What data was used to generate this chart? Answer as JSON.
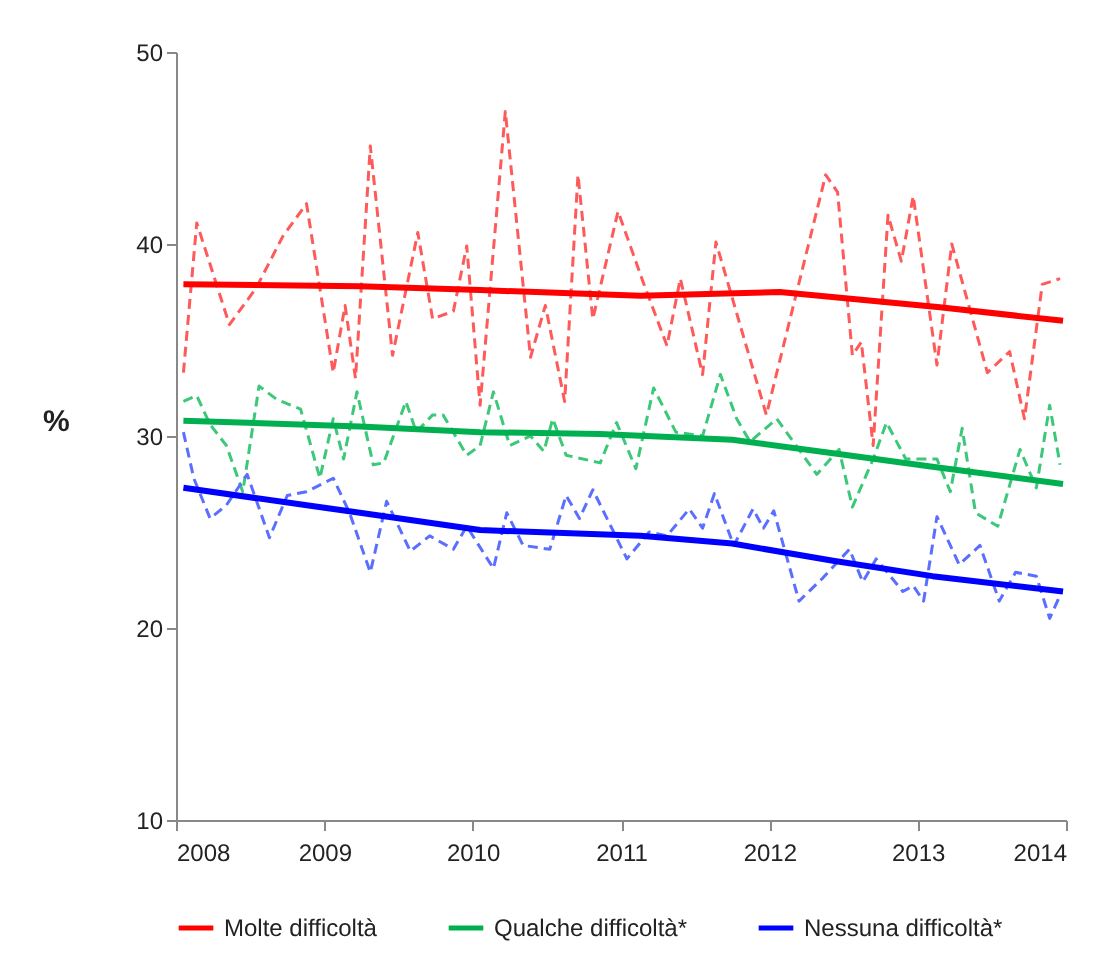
{
  "chart_data": {
    "type": "line",
    "ylabel": "%",
    "xlim": [
      2008,
      2014
    ],
    "xticks": [
      2008,
      2009,
      2010,
      2011,
      2012,
      2013,
      2014
    ],
    "ylim": [
      10,
      50
    ],
    "yticks": [
      10,
      20,
      30,
      40,
      50
    ],
    "grid": false,
    "legend": "bottom",
    "series": [
      {
        "color": "#ff5a5a",
        "line_style": "dashed",
        "x": [
          2008.05,
          2008.14,
          2008.36,
          2008.54,
          2008.72,
          2008.88,
          2009.06,
          2009.14,
          2009.21,
          2009.31,
          2009.46,
          2009.63,
          2009.73,
          2009.87,
          2009.96,
          2010.05,
          2010.22,
          2010.39,
          2010.49,
          2010.62,
          2010.71,
          2010.81,
          2010.98,
          2011.15,
          2011.31,
          2011.4,
          2011.55,
          2011.64,
          2011.98,
          2012.38,
          2012.46,
          2012.56,
          2012.62,
          2012.7,
          2012.8,
          2012.89,
          2012.97,
          2013.13,
          2013.23,
          2013.47,
          2013.62,
          2013.72,
          2013.84,
          2013.96
        ],
        "values": [
          33.3,
          41.1,
          35.8,
          37.7,
          40.4,
          42.1,
          33.3,
          36.8,
          33.0,
          45.1,
          34.2,
          40.6,
          36.1,
          36.5,
          39.9,
          31.6,
          46.9,
          34.1,
          36.8,
          31.8,
          43.6,
          36.1,
          41.7,
          38.0,
          34.7,
          38.2,
          33.2,
          40.1,
          31.1,
          43.6,
          42.7,
          34.2,
          34.9,
          29.5,
          41.5,
          39.1,
          42.5,
          33.7,
          40.0,
          33.3,
          34.4,
          30.9,
          37.9,
          38.2
        ]
      },
      {
        "color": "#3cc878",
        "line_style": "dashed",
        "x": [
          2008.05,
          2008.14,
          2008.23,
          2008.34,
          2008.45,
          2008.56,
          2008.68,
          2008.84,
          2008.97,
          2009.06,
          2009.13,
          2009.22,
          2009.33,
          2009.4,
          2009.55,
          2009.62,
          2009.73,
          2009.8,
          2009.96,
          2010.05,
          2010.14,
          2010.25,
          2010.39,
          2010.48,
          2010.54,
          2010.63,
          2010.86,
          2010.97,
          2011.1,
          2011.22,
          2011.37,
          2011.55,
          2011.67,
          2011.78,
          2011.87,
          2012.05,
          2012.32,
          2012.47,
          2012.56,
          2012.7,
          2012.79,
          2012.92,
          2013.13,
          2013.22,
          2013.3,
          2013.39,
          2013.54,
          2013.69,
          2013.8,
          2013.89,
          2013.96
        ],
        "values": [
          31.8,
          32.1,
          30.6,
          29.5,
          27.1,
          32.6,
          31.9,
          31.4,
          27.8,
          30.9,
          28.8,
          32.3,
          28.5,
          28.6,
          31.8,
          30.2,
          31.1,
          31.1,
          29.0,
          29.5,
          32.3,
          29.5,
          30.0,
          29.2,
          30.9,
          29.0,
          28.6,
          30.7,
          28.3,
          32.5,
          30.2,
          30.0,
          33.2,
          30.9,
          29.7,
          30.9,
          28.0,
          29.3,
          26.3,
          28.8,
          30.7,
          28.8,
          28.8,
          27.1,
          30.4,
          26.0,
          25.3,
          29.3,
          27.3,
          31.6,
          28.5
        ]
      },
      {
        "color": "#5a6eff",
        "line_style": "dashed",
        "x": [
          2008.05,
          2008.12,
          2008.23,
          2008.34,
          2008.48,
          2008.63,
          2008.75,
          2008.88,
          2009.06,
          2009.17,
          2009.31,
          2009.42,
          2009.58,
          2009.71,
          2009.87,
          2009.96,
          2010.14,
          2010.23,
          2010.34,
          2010.52,
          2010.63,
          2010.72,
          2010.81,
          2011.04,
          2011.19,
          2011.31,
          2011.46,
          2011.55,
          2011.63,
          2011.76,
          2011.89,
          2011.96,
          2012.03,
          2012.2,
          2012.36,
          2012.54,
          2012.63,
          2012.72,
          2012.9,
          2012.97,
          2013.04,
          2013.13,
          2013.28,
          2013.42,
          2013.55,
          2013.66,
          2013.8,
          2013.89,
          2013.96
        ],
        "values": [
          30.2,
          27.8,
          25.7,
          26.4,
          28.0,
          24.7,
          26.9,
          27.1,
          27.8,
          26.0,
          22.9,
          26.6,
          24.0,
          24.8,
          24.1,
          25.3,
          23.1,
          26.0,
          24.3,
          24.1,
          26.9,
          25.7,
          27.2,
          23.6,
          25.0,
          24.8,
          26.2,
          25.2,
          27.0,
          24.3,
          26.2,
          25.2,
          26.1,
          21.4,
          22.6,
          24.1,
          22.4,
          23.6,
          21.9,
          22.2,
          21.4,
          25.8,
          23.3,
          24.3,
          21.4,
          22.9,
          22.7,
          20.5,
          21.7
        ]
      },
      {
        "name": "Molte difficoltà",
        "color": "#ff0000",
        "line_style": "solid",
        "x": [
          2008.05,
          2009.24,
          2010.05,
          2011.13,
          2012.07,
          2013.15,
          2013.98
        ],
        "values": [
          37.9,
          37.8,
          37.6,
          37.3,
          37.5,
          36.7,
          36.0
        ]
      },
      {
        "name": "Qualche difficoltà*",
        "color": "#00b050",
        "line_style": "solid",
        "x": [
          2008.05,
          2009.24,
          2010.05,
          2010.86,
          2011.75,
          2012.43,
          2013.1,
          2013.98
        ],
        "values": [
          30.8,
          30.5,
          30.2,
          30.1,
          29.8,
          29.1,
          28.4,
          27.5
        ]
      },
      {
        "name": "Nessuna difficoltà*",
        "color": "#0000ff",
        "line_style": "solid",
        "x": [
          2008.05,
          2009.24,
          2010.05,
          2011.13,
          2011.75,
          2012.43,
          2013.1,
          2013.98
        ],
        "values": [
          27.3,
          26.0,
          25.1,
          24.8,
          24.4,
          23.5,
          22.7,
          21.9
        ]
      }
    ]
  }
}
